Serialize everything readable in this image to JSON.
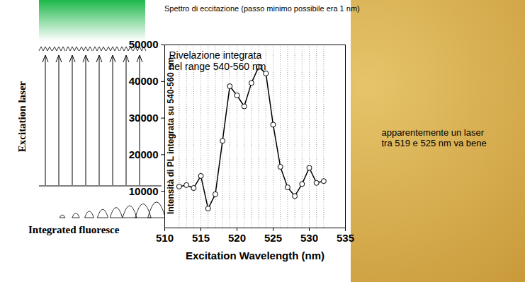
{
  "chart_data": {
    "type": "line",
    "title": "Spettro di eccitazione (passo minimo possibile era 1 nm)",
    "x_label": "Excitation Wavelength (nm)",
    "y_label": "Intensità di PL integrata su 540-560 nm",
    "annotations": [
      "Rivelazione integrata\nnel range 540-560 nm",
      "apparentemente un laser\ntra 519 e 525 nm va bene"
    ],
    "diagram_labels": [
      "Excitation laser",
      "Integrated fluoresce"
    ],
    "x": [
      512,
      513,
      514,
      515,
      516,
      517,
      518,
      519,
      520,
      521,
      522,
      523,
      524,
      525,
      526,
      527,
      528,
      529,
      530,
      531,
      532
    ],
    "values": [
      11300,
      11700,
      10900,
      14200,
      5300,
      9200,
      23800,
      38700,
      36200,
      33200,
      39600,
      44000,
      42200,
      28200,
      16700,
      11100,
      8700,
      12000,
      16400,
      12300,
      12800
    ],
    "color": "#000000",
    "marker": "open_circle",
    "line_style": "solid",
    "xlim": [
      510,
      535
    ],
    "xticks": [
      510,
      515,
      520,
      525,
      530,
      535
    ],
    "ylim": [
      0,
      50000
    ],
    "yticks": [
      10000,
      20000,
      30000,
      40000,
      50000
    ],
    "grid": true
  }
}
